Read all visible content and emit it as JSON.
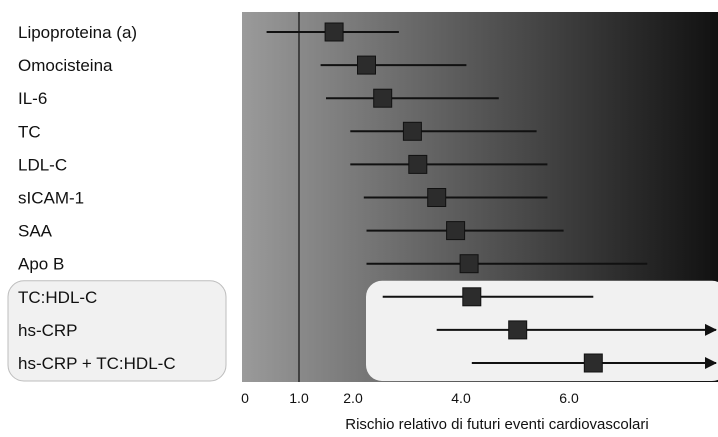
{
  "chart_data": {
    "type": "forest",
    "xlabel": "Rischio relativo di futuri eventi cardiovascolari",
    "xlim": [
      0,
      8.8
    ],
    "reference_line": 1.0,
    "x_ticks": [
      {
        "value": 0,
        "label": "0"
      },
      {
        "value": 1.0,
        "label": "1.0"
      },
      {
        "value": 2.0,
        "label": "2.0"
      },
      {
        "value": 4.0,
        "label": "4.0"
      },
      {
        "value": 6.0,
        "label": "6.0"
      }
    ],
    "rows": [
      {
        "label": "Lipoproteina (a)",
        "estimate": 1.65,
        "low": 0.4,
        "high": 2.85,
        "arrow": false,
        "highlight": false
      },
      {
        "label": "Omocisteina",
        "estimate": 2.25,
        "low": 1.4,
        "high": 4.1,
        "arrow": false,
        "highlight": false
      },
      {
        "label": "IL-6",
        "estimate": 2.55,
        "low": 1.5,
        "high": 4.7,
        "arrow": false,
        "highlight": false
      },
      {
        "label": "TC",
        "estimate": 3.1,
        "low": 1.95,
        "high": 5.4,
        "arrow": false,
        "highlight": false
      },
      {
        "label": "LDL-C",
        "estimate": 3.2,
        "low": 1.95,
        "high": 5.6,
        "arrow": false,
        "highlight": false
      },
      {
        "label": "sICAM-1",
        "estimate": 3.55,
        "low": 2.2,
        "high": 5.6,
        "arrow": false,
        "highlight": false
      },
      {
        "label": "SAA",
        "estimate": 3.9,
        "low": 2.25,
        "high": 5.9,
        "arrow": false,
        "highlight": false
      },
      {
        "label": "Apo B",
        "estimate": 4.15,
        "low": 2.25,
        "high": 7.45,
        "arrow": false,
        "highlight": false
      },
      {
        "label": "TC:HDL-C",
        "estimate": 4.2,
        "low": 2.55,
        "high": 6.45,
        "arrow": false,
        "highlight": true
      },
      {
        "label": "hs-CRP",
        "estimate": 5.05,
        "low": 3.55,
        "high": 8.8,
        "arrow": true,
        "highlight": true
      },
      {
        "label": "hs-CRP + TC:HDL-C",
        "estimate": 6.45,
        "low": 4.2,
        "high": 8.8,
        "arrow": true,
        "highlight": true
      }
    ]
  },
  "colors": {
    "band_left": "#9a9a9a",
    "band_right": "#111111",
    "marker": "#2c2c2c",
    "highlight_box": "#f1f1f1"
  }
}
